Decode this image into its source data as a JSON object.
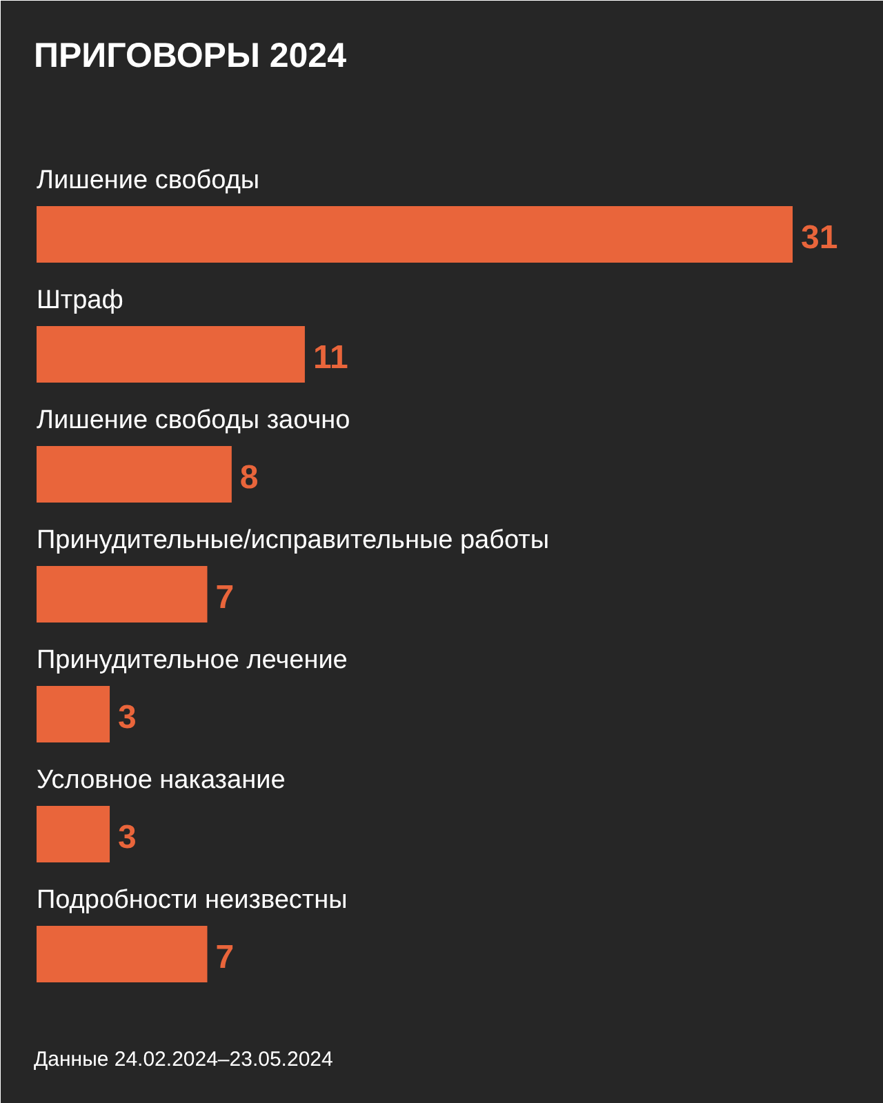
{
  "chart_data": {
    "type": "bar",
    "orientation": "horizontal",
    "title": "ПРИГОВОРЫ 2024",
    "categories": [
      "Лишение свободы",
      "Штраф",
      "Лишение свободы заочно",
      "Принудительные/исправительные работы",
      "Принудительное лечение",
      "Условное наказание",
      "Подробности неизвестны"
    ],
    "values": [
      31,
      11,
      8,
      7,
      3,
      3,
      7
    ],
    "color": "#e9653b",
    "data_labels": true,
    "annotations": [
      "Данные 24.02.2024–23.05.2024"
    ]
  }
}
